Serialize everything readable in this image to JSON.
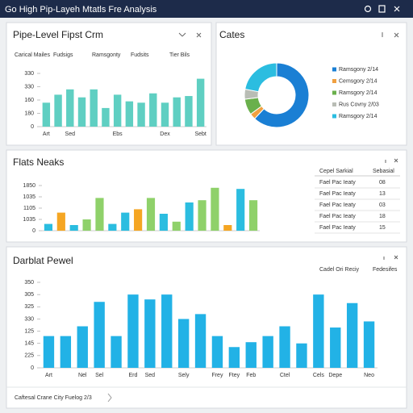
{
  "header": {
    "title": "Go High Pip-Layeh Mtatls Fre Analysis"
  },
  "chart_data": [
    {
      "type": "bar",
      "title": "Pipe-Level Fipst Crm",
      "tabs": [
        "Carical Mailes",
        "Fudsigs",
        "Ramsgonty",
        "Fudsits",
        "Tier Bils"
      ],
      "categories": [
        "Art",
        null,
        "Sed",
        null,
        null,
        null,
        "Ebs",
        null,
        null,
        null,
        "Dex",
        null,
        null,
        "Sebt"
      ],
      "values": [
        1.8,
        2.4,
        2.8,
        2.2,
        2.8,
        1.4,
        2.4,
        1.9,
        1.8,
        2.5,
        1.8,
        2.2,
        2.3,
        3.6
      ],
      "color": "#5fcfc2",
      "ylim": [
        0,
        4
      ],
      "yticks": [
        0,
        {
          "value": 1,
          "label": "180"
        },
        {
          "value": 2,
          "label": "160"
        },
        {
          "value": 3,
          "label": "330"
        },
        {
          "value": 4,
          "label": "330"
        }
      ]
    },
    {
      "type": "pie",
      "title": "Cates",
      "categories": [
        "Ramsgony 2/14",
        "Cemsgory 2/14",
        "Ramsgory 2/14",
        "Rus Covny 2/03",
        "Ramsgory 2/14"
      ],
      "values": [
        62,
        3,
        8,
        5,
        22
      ],
      "colors": [
        "#1a7fd4",
        "#f0a040",
        "#6ab04c",
        "#b9bdb5",
        "#2bbde0"
      ]
    },
    {
      "type": "bar",
      "title": "Flats Neaks",
      "values": [
        0.6,
        1.6,
        0.5,
        1.0,
        2.9,
        0.6,
        1.6,
        1.9,
        2.9,
        1.5,
        0.8,
        2.5,
        2.7,
        3.8,
        0.5,
        3.7,
        2.7
      ],
      "colors": [
        "#2bbde0",
        "#f5a623",
        "#2bbde0",
        "#8fd16a",
        "#8fd16a",
        "#2bbde0",
        "#2bbde0",
        "#f5a623",
        "#8fd16a",
        "#2bbde0",
        "#8fd16a",
        "#2bbde0",
        "#8fd16a",
        "#8fd16a",
        "#f5a623",
        "#2bbde0",
        "#8fd16a"
      ],
      "ylim": [
        0,
        4
      ],
      "yticks": [
        0,
        {
          "value": 1,
          "label": "1035"
        },
        {
          "value": 2,
          "label": "1105"
        },
        {
          "value": 3,
          "label": "1035"
        },
        {
          "value": 4,
          "label": "1850"
        }
      ],
      "table": {
        "columns": [
          "Cepel Sarkial",
          "Sebasial"
        ],
        "rows": [
          [
            "Fael Pac Ieaty",
            "08"
          ],
          [
            "Fael Pac Ieaty",
            "13"
          ],
          [
            "Fael Pac Ieaty",
            "03"
          ],
          [
            "Fael Pac Ieaty",
            "18"
          ],
          [
            "Fael Pac Ieaty",
            "15"
          ]
        ]
      }
    },
    {
      "type": "bar",
      "title": "Darblat Pewel",
      "columns": [
        "Cadel Ori Reciy",
        "Fedesifes"
      ],
      "categories": [
        "Art",
        null,
        "Nel",
        "Sel",
        null,
        "Erd",
        "Sed",
        null,
        "Sely",
        null,
        "Frey",
        "Ftey",
        "Feb",
        null,
        "Ctel",
        null,
        "Cels",
        "Depe",
        null,
        "Neo"
      ],
      "values": [
        2.6,
        2.6,
        3.4,
        5.4,
        2.6,
        6.0,
        5.6,
        6.0,
        4.0,
        4.4,
        2.6,
        1.7,
        2.1,
        2.6,
        3.4,
        2.0,
        6.0,
        3.3,
        5.3,
        3.8
      ],
      "color": "#22b2e6",
      "ylim": [
        0,
        7
      ],
      "yticks": [
        0,
        {
          "value": 1,
          "label": "225"
        },
        {
          "value": 2,
          "label": "145"
        },
        {
          "value": 3,
          "label": "125"
        },
        {
          "value": 4,
          "label": "330"
        },
        {
          "value": 5,
          "label": "325"
        },
        {
          "value": 6,
          "label": "305"
        },
        {
          "value": 7,
          "label": "350"
        }
      ],
      "footer": "Caftesal Crane City Fuelog 2/3"
    }
  ]
}
